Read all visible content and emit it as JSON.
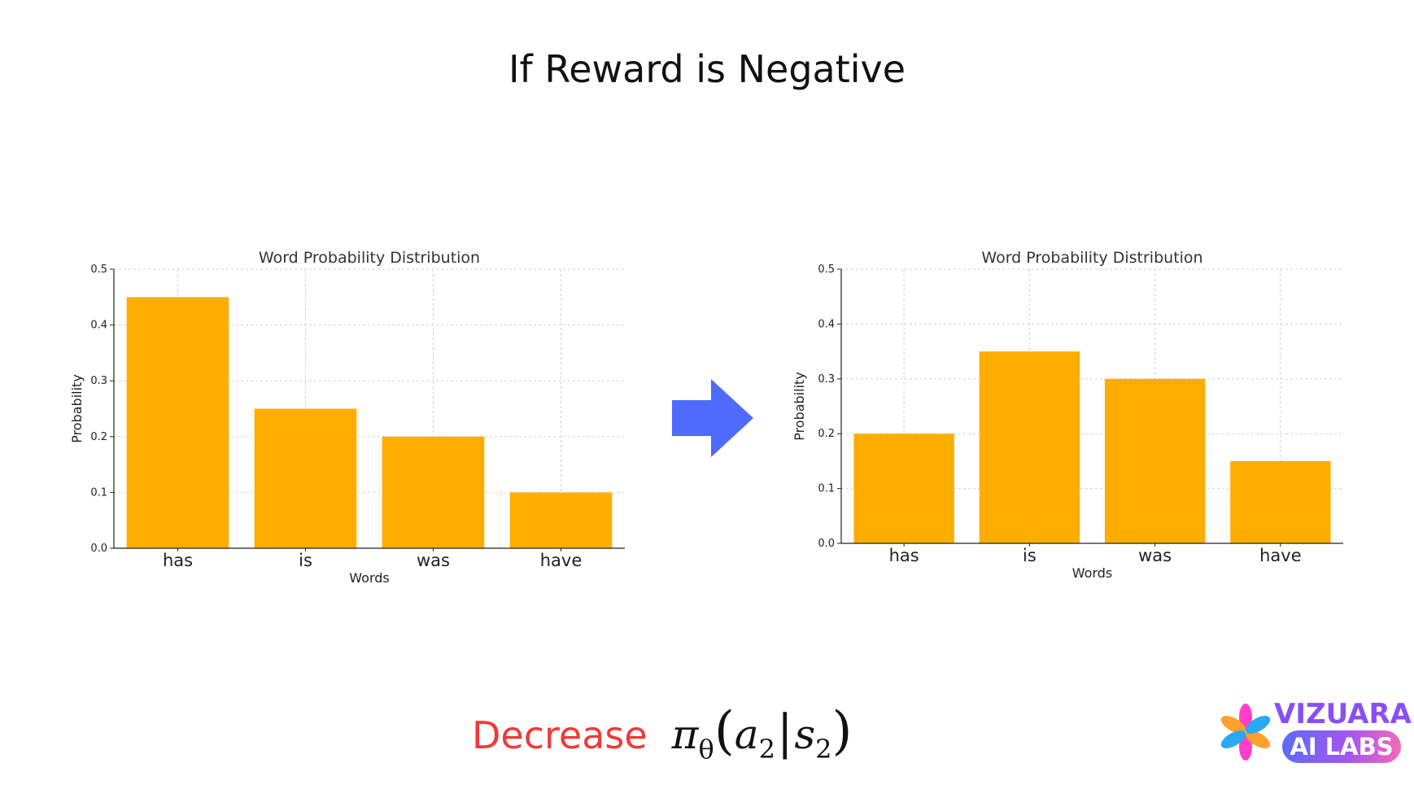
{
  "slide": {
    "title": "If Reward is Negative",
    "footer_word": "Decrease",
    "formula": {
      "pi": "π",
      "theta": "θ",
      "open_paren": "(",
      "a": "a",
      "a_sub": "2",
      "bar": "|",
      "s": "s",
      "s_sub": "2",
      "close_paren": ")"
    },
    "logo": {
      "top_text": "VIZUARA",
      "pill_text": "AI LABS"
    },
    "colors": {
      "bar": "#ffad00",
      "arrow": "#4f6bff",
      "decrease": "#f03a3a",
      "logo_top": "#8a4ef5"
    },
    "arrow_icon": "right-arrow-icon"
  },
  "chart_data": [
    {
      "type": "bar",
      "title": "Word Probability Distribution",
      "xlabel": "Words",
      "ylabel": "Probability",
      "categories": [
        "has",
        "is",
        "was",
        "have"
      ],
      "values": [
        0.45,
        0.25,
        0.2,
        0.1
      ],
      "ylim": [
        0,
        0.5
      ],
      "yticks": [
        "0.0",
        "0.1",
        "0.2",
        "0.3",
        "0.4",
        "0.5"
      ],
      "grid": true
    },
    {
      "type": "bar",
      "title": "Word Probability Distribution",
      "xlabel": "Words",
      "ylabel": "Probability",
      "categories": [
        "has",
        "is",
        "was",
        "have"
      ],
      "values": [
        0.2,
        0.35,
        0.3,
        0.15
      ],
      "ylim": [
        0,
        0.5
      ],
      "yticks": [
        "0.0",
        "0.1",
        "0.2",
        "0.3",
        "0.4",
        "0.5"
      ],
      "grid": true
    }
  ]
}
